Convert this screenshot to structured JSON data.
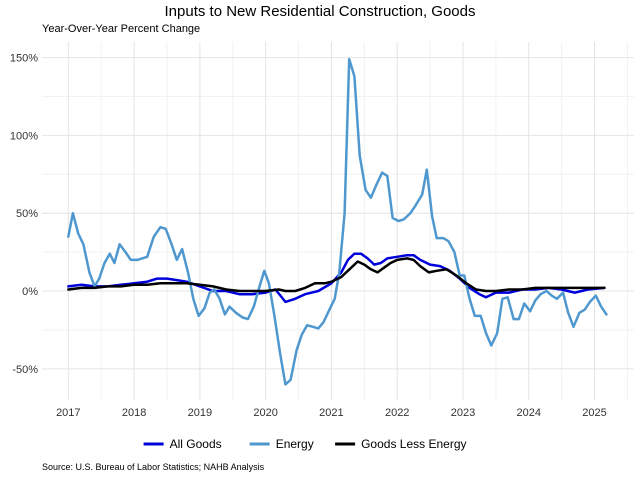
{
  "title": "Inputs to New Residential Construction, Goods",
  "subtitle": "Year-Over-Year Percent Change",
  "source": "Source: U.S. Bureau of Labor Statistics; NAHB Analysis",
  "chart_data": {
    "type": "line",
    "title": "Inputs to New Residential Construction, Goods",
    "ylabel": "Year-Over-Year Percent Change",
    "ylim": [
      -70,
      160
    ],
    "xlim": [
      2016.6,
      2025.6
    ],
    "yticks": [
      -50,
      0,
      50,
      100,
      150
    ],
    "ytick_labels": [
      "-50%",
      "0%",
      "50%",
      "100%",
      "150%"
    ],
    "xticks": [
      2017,
      2018,
      2019,
      2020,
      2021,
      2022,
      2023,
      2024,
      2025
    ],
    "xtick_labels": [
      "2017",
      "2018",
      "2019",
      "2020",
      "2021",
      "2022",
      "2023",
      "2024",
      "2025"
    ],
    "grid": true,
    "legend_position": "bottom",
    "series": [
      {
        "name": "All Goods",
        "color": "#0000dd",
        "width": 2.5,
        "points": [
          [
            2017.0,
            3
          ],
          [
            2017.2,
            4
          ],
          [
            2017.4,
            3
          ],
          [
            2017.6,
            3
          ],
          [
            2017.8,
            4
          ],
          [
            2018.0,
            5
          ],
          [
            2018.2,
            6
          ],
          [
            2018.35,
            8
          ],
          [
            2018.5,
            8
          ],
          [
            2018.65,
            7
          ],
          [
            2018.8,
            6
          ],
          [
            2019.0,
            3
          ],
          [
            2019.2,
            0
          ],
          [
            2019.4,
            0
          ],
          [
            2019.6,
            -2
          ],
          [
            2019.8,
            -2
          ],
          [
            2020.0,
            -1
          ],
          [
            2020.15,
            1
          ],
          [
            2020.3,
            -7
          ],
          [
            2020.45,
            -5
          ],
          [
            2020.6,
            -2
          ],
          [
            2020.8,
            0
          ],
          [
            2021.0,
            5
          ],
          [
            2021.15,
            12
          ],
          [
            2021.25,
            20
          ],
          [
            2021.35,
            24
          ],
          [
            2021.45,
            24
          ],
          [
            2021.55,
            21
          ],
          [
            2021.65,
            17
          ],
          [
            2021.75,
            18
          ],
          [
            2021.85,
            21
          ],
          [
            2022.0,
            22
          ],
          [
            2022.15,
            23
          ],
          [
            2022.25,
            23
          ],
          [
            2022.35,
            20
          ],
          [
            2022.5,
            17
          ],
          [
            2022.65,
            16
          ],
          [
            2022.8,
            13
          ],
          [
            2022.95,
            8
          ],
          [
            2023.1,
            2
          ],
          [
            2023.25,
            -2
          ],
          [
            2023.35,
            -4
          ],
          [
            2023.5,
            -1
          ],
          [
            2023.7,
            -1
          ],
          [
            2023.9,
            1
          ],
          [
            2024.1,
            1
          ],
          [
            2024.3,
            2
          ],
          [
            2024.5,
            1
          ],
          [
            2024.7,
            -1
          ],
          [
            2024.9,
            1
          ],
          [
            2025.15,
            2
          ]
        ]
      },
      {
        "name": "Energy",
        "color": "#4f98cf",
        "width": 2.5,
        "points": [
          [
            2017.0,
            35
          ],
          [
            2017.07,
            50
          ],
          [
            2017.15,
            37
          ],
          [
            2017.23,
            30
          ],
          [
            2017.32,
            12
          ],
          [
            2017.4,
            3
          ],
          [
            2017.47,
            8
          ],
          [
            2017.55,
            18
          ],
          [
            2017.63,
            24
          ],
          [
            2017.7,
            18
          ],
          [
            2017.78,
            30
          ],
          [
            2017.87,
            25
          ],
          [
            2017.95,
            20
          ],
          [
            2018.05,
            20
          ],
          [
            2018.2,
            22
          ],
          [
            2018.3,
            35
          ],
          [
            2018.4,
            41
          ],
          [
            2018.48,
            40
          ],
          [
            2018.57,
            30
          ],
          [
            2018.65,
            20
          ],
          [
            2018.73,
            27
          ],
          [
            2018.82,
            12
          ],
          [
            2018.9,
            -5
          ],
          [
            2018.98,
            -16
          ],
          [
            2019.07,
            -11
          ],
          [
            2019.15,
            -1
          ],
          [
            2019.22,
            1
          ],
          [
            2019.3,
            -5
          ],
          [
            2019.38,
            -15
          ],
          [
            2019.45,
            -10
          ],
          [
            2019.55,
            -14
          ],
          [
            2019.65,
            -17
          ],
          [
            2019.73,
            -18
          ],
          [
            2019.82,
            -10
          ],
          [
            2019.9,
            2
          ],
          [
            2019.98,
            13
          ],
          [
            2020.05,
            5
          ],
          [
            2020.13,
            -15
          ],
          [
            2020.22,
            -40
          ],
          [
            2020.3,
            -60
          ],
          [
            2020.38,
            -57
          ],
          [
            2020.47,
            -38
          ],
          [
            2020.55,
            -28
          ],
          [
            2020.63,
            -22
          ],
          [
            2020.72,
            -23
          ],
          [
            2020.8,
            -24
          ],
          [
            2020.88,
            -20
          ],
          [
            2020.97,
            -12
          ],
          [
            2021.05,
            -5
          ],
          [
            2021.12,
            12
          ],
          [
            2021.2,
            50
          ],
          [
            2021.27,
            149
          ],
          [
            2021.35,
            138
          ],
          [
            2021.43,
            87
          ],
          [
            2021.52,
            65
          ],
          [
            2021.6,
            60
          ],
          [
            2021.68,
            68
          ],
          [
            2021.77,
            76
          ],
          [
            2021.85,
            74
          ],
          [
            2021.93,
            47
          ],
          [
            2022.02,
            45
          ],
          [
            2022.1,
            46
          ],
          [
            2022.2,
            50
          ],
          [
            2022.28,
            55
          ],
          [
            2022.38,
            62
          ],
          [
            2022.45,
            78
          ],
          [
            2022.53,
            48
          ],
          [
            2022.6,
            34
          ],
          [
            2022.7,
            34
          ],
          [
            2022.78,
            32
          ],
          [
            2022.87,
            25
          ],
          [
            2022.95,
            10
          ],
          [
            2023.02,
            10
          ],
          [
            2023.1,
            -5
          ],
          [
            2023.18,
            -16
          ],
          [
            2023.27,
            -16
          ],
          [
            2023.35,
            -27
          ],
          [
            2023.43,
            -35
          ],
          [
            2023.52,
            -27
          ],
          [
            2023.6,
            -5
          ],
          [
            2023.68,
            -4
          ],
          [
            2023.77,
            -18
          ],
          [
            2023.85,
            -18
          ],
          [
            2023.93,
            -8
          ],
          [
            2024.02,
            -13
          ],
          [
            2024.1,
            -6
          ],
          [
            2024.18,
            -2
          ],
          [
            2024.27,
            0
          ],
          [
            2024.35,
            -3
          ],
          [
            2024.43,
            -5
          ],
          [
            2024.52,
            -1
          ],
          [
            2024.6,
            -14
          ],
          [
            2024.68,
            -23
          ],
          [
            2024.77,
            -14
          ],
          [
            2024.85,
            -12
          ],
          [
            2024.93,
            -7
          ],
          [
            2025.02,
            -3
          ],
          [
            2025.1,
            -10
          ],
          [
            2025.18,
            -15
          ]
        ]
      },
      {
        "name": "Goods Less Energy",
        "color": "#000000",
        "width": 2.5,
        "points": [
          [
            2017.0,
            1
          ],
          [
            2017.2,
            2
          ],
          [
            2017.4,
            2
          ],
          [
            2017.6,
            3
          ],
          [
            2017.8,
            3
          ],
          [
            2018.0,
            4
          ],
          [
            2018.2,
            4
          ],
          [
            2018.4,
            5
          ],
          [
            2018.6,
            5
          ],
          [
            2018.8,
            5
          ],
          [
            2019.0,
            4
          ],
          [
            2019.2,
            3
          ],
          [
            2019.4,
            1
          ],
          [
            2019.6,
            0
          ],
          [
            2019.8,
            0
          ],
          [
            2020.0,
            0
          ],
          [
            2020.2,
            1
          ],
          [
            2020.3,
            0
          ],
          [
            2020.45,
            0
          ],
          [
            2020.6,
            2
          ],
          [
            2020.75,
            5
          ],
          [
            2020.9,
            5
          ],
          [
            2021.0,
            6
          ],
          [
            2021.15,
            9
          ],
          [
            2021.3,
            15
          ],
          [
            2021.4,
            19
          ],
          [
            2021.5,
            17
          ],
          [
            2021.6,
            14
          ],
          [
            2021.7,
            12
          ],
          [
            2021.8,
            15
          ],
          [
            2021.9,
            18
          ],
          [
            2022.0,
            20
          ],
          [
            2022.15,
            21
          ],
          [
            2022.25,
            20
          ],
          [
            2022.35,
            16
          ],
          [
            2022.48,
            12
          ],
          [
            2022.6,
            13
          ],
          [
            2022.75,
            14
          ],
          [
            2022.9,
            10
          ],
          [
            2023.05,
            5
          ],
          [
            2023.2,
            1
          ],
          [
            2023.35,
            0
          ],
          [
            2023.5,
            0
          ],
          [
            2023.7,
            1
          ],
          [
            2023.9,
            1
          ],
          [
            2024.1,
            2
          ],
          [
            2024.3,
            2
          ],
          [
            2024.5,
            2
          ],
          [
            2024.7,
            2
          ],
          [
            2024.9,
            2
          ],
          [
            2025.15,
            2
          ]
        ]
      }
    ]
  }
}
